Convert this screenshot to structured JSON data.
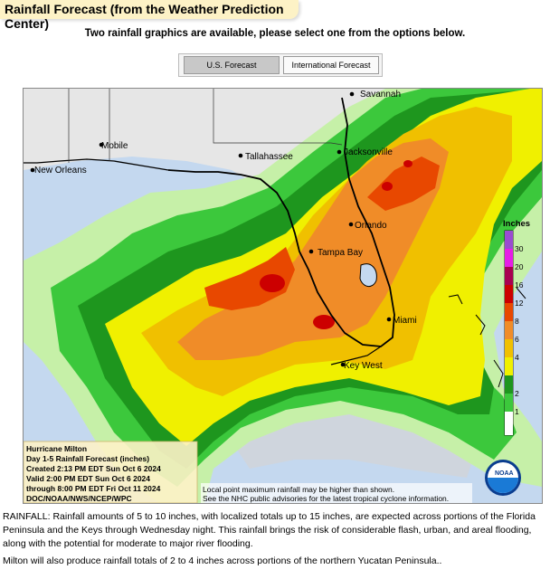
{
  "header": {
    "title": "Rainfall Forecast (from the Weather Prediction Center)",
    "subtitle": "Two rainfall graphics are available, please select one from the options below."
  },
  "tabs": [
    {
      "label": "U.S. Forecast",
      "selected": true
    },
    {
      "label": "International Forecast",
      "selected": false
    }
  ],
  "map": {
    "cities": {
      "savannah": "Savannah",
      "jacksonville": "Jacksonville",
      "tallahassee": "Tallahassee",
      "mobile": "Mobile",
      "new_orleans": "New Orleans",
      "orlando": "Orlando",
      "tampa_bay": "Tampa Bay",
      "miami": "Miami",
      "key_west": "Key West"
    },
    "legend": {
      "title": "Inches",
      "levels": [
        "30",
        "20",
        "16",
        "12",
        "8",
        "6",
        "4",
        "2",
        "1"
      ],
      "colors": [
        "#e8e8e8",
        "#3cc83c",
        "#1e961e",
        "#f0f000",
        "#f0c000",
        "#f08c28",
        "#e84800",
        "#cc0000",
        "#a80050",
        "#e61ee6",
        "#9a4cd0"
      ]
    },
    "info_box": {
      "line1": "Hurricane Milton",
      "line2": "Day 1-5 Rainfall Forecast (inches)",
      "line3": "Created 2:13 PM EDT Sun Oct 6 2024",
      "line4": "Valid 2:00 PM EDT Sun Oct 6 2024",
      "line5": "through 8:00 PM EDT Fri Oct 11 2024",
      "line6": "DOC/NOAA/NWS/NCEP/WPC"
    },
    "note_line1": "Local point maximum rainfall may be higher than shown.",
    "note_line2": "See the NHC public advisories for the latest tropical cyclone information.",
    "logo_text": "NOAA"
  },
  "description": {
    "p1": "RAINFALL: Rainfall amounts of 5 to 10 inches, with localized totals up to 15 inches, are expected across portions of the Florida Peninsula and the Keys through Wednesday night. This rainfall brings the risk of considerable flash, urban, and areal flooding, along with the potential for moderate to major river flooding.",
    "p2": "Milton will also produce rainfall totals of 2 to 4 inches across portions of the northern Yucatan Peninsula.."
  }
}
